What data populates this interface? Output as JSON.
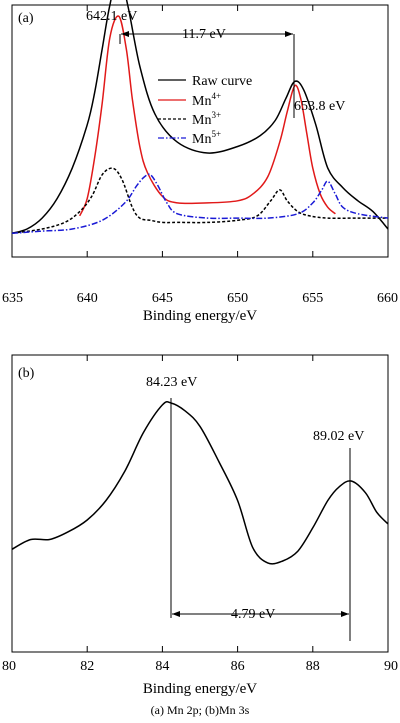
{
  "caption": "(a) Mn 2p; (b)Mn 3s",
  "chart_data": [
    {
      "panel_label": "(a)",
      "type": "line",
      "xlabel": "Binding energy/eV",
      "xlim": [
        635,
        660
      ],
      "xticks": [
        635,
        640,
        645,
        650,
        655,
        660
      ],
      "ylabel": "",
      "yticks": [],
      "legend": {
        "placement": "center-right",
        "entries": [
          {
            "label": "Raw curve",
            "style": "solid",
            "color": "#000000"
          },
          {
            "label": "Mn",
            "sup": "4+",
            "style": "solid",
            "color": "#e11919"
          },
          {
            "label": "Mn",
            "sup": "3+",
            "style": "dotted",
            "color": "#000000"
          },
          {
            "label": "Mn",
            "sup": "5+",
            "style": "dashdot",
            "color": "#1a1ad6"
          }
        ]
      },
      "series": [
        {
          "key": "raw",
          "color": "#000000",
          "dash": "",
          "x": [
            635,
            636,
            637,
            638,
            639,
            640,
            640.5,
            641,
            641.5,
            642.1,
            642.7,
            643.5,
            644.5,
            646,
            648,
            650,
            651.5,
            652.5,
            653.2,
            653.8,
            654.4,
            655.2,
            656,
            657,
            658,
            659,
            660
          ],
          "y": [
            0.1,
            0.12,
            0.17,
            0.26,
            0.4,
            0.6,
            0.75,
            0.95,
            1.15,
            1.3,
            1.15,
            0.87,
            0.65,
            0.52,
            0.47,
            0.5,
            0.55,
            0.62,
            0.72,
            0.8,
            0.76,
            0.6,
            0.4,
            0.31,
            0.25,
            0.2,
            0.12
          ]
        },
        {
          "key": "mn4",
          "color": "#e11919",
          "dash": "",
          "x": [
            639.5,
            640,
            640.5,
            641,
            641.5,
            642.1,
            642.6,
            643,
            643.5,
            644,
            645,
            646,
            648,
            650,
            651,
            652,
            652.8,
            653.3,
            653.8,
            654.2,
            654.6,
            655,
            655.5,
            656,
            656.5
          ],
          "y": [
            0.18,
            0.26,
            0.45,
            0.7,
            1.0,
            1.1,
            0.95,
            0.72,
            0.5,
            0.38,
            0.27,
            0.24,
            0.24,
            0.25,
            0.28,
            0.36,
            0.52,
            0.66,
            0.78,
            0.72,
            0.56,
            0.4,
            0.28,
            0.22,
            0.19
          ]
        },
        {
          "key": "mn3",
          "color": "#000000",
          "dash": "3,2",
          "x": [
            635,
            637,
            638.5,
            639.5,
            640.3,
            641,
            641.7,
            642.3,
            643,
            643.5,
            644.2,
            645,
            646,
            648,
            650,
            651.3,
            652.2,
            652.8,
            653.3,
            654,
            654.8,
            656,
            658,
            660
          ],
          "y": [
            0.1,
            0.12,
            0.15,
            0.2,
            0.27,
            0.37,
            0.4,
            0.35,
            0.22,
            0.17,
            0.16,
            0.15,
            0.15,
            0.15,
            0.16,
            0.18,
            0.25,
            0.3,
            0.25,
            0.2,
            0.18,
            0.17,
            0.17,
            0.17
          ]
        },
        {
          "key": "mn5",
          "color": "#1a1ad6",
          "dash": "6,2,1.5,2",
          "x": [
            635,
            637,
            639,
            641,
            642.5,
            643.3,
            643.8,
            644.2,
            644.7,
            645.3,
            646,
            648,
            650,
            652,
            654,
            655,
            655.6,
            656,
            656.5,
            657,
            658,
            660
          ],
          "y": [
            0.1,
            0.11,
            0.12,
            0.16,
            0.24,
            0.32,
            0.36,
            0.37,
            0.32,
            0.24,
            0.19,
            0.17,
            0.17,
            0.17,
            0.19,
            0.24,
            0.3,
            0.34,
            0.28,
            0.22,
            0.19,
            0.17
          ]
        }
      ],
      "annotations": [
        {
          "text": "642.1 eV",
          "x": 642.1
        },
        {
          "text": "11.7 eV",
          "x1": 642.1,
          "x2": 653.8
        },
        {
          "text": "653.8 eV",
          "x": 653.8
        }
      ]
    },
    {
      "panel_label": "(b)",
      "type": "line",
      "xlabel": "Binding energy/eV",
      "xlim": [
        80,
        90
      ],
      "xticks": [
        80,
        82,
        84,
        86,
        88,
        90
      ],
      "ylabel": "",
      "yticks": [],
      "series": [
        {
          "key": "mn3s",
          "color": "#000000",
          "dash": "",
          "x": [
            80,
            80.5,
            81,
            81.5,
            82,
            82.5,
            83,
            83.5,
            84,
            84.23,
            84.6,
            85,
            85.5,
            86,
            86.4,
            86.8,
            87.2,
            87.6,
            88,
            88.4,
            88.7,
            89.02,
            89.4,
            89.7,
            90
          ],
          "y": [
            0.25,
            0.3,
            0.3,
            0.34,
            0.4,
            0.5,
            0.65,
            0.85,
            0.99,
            1.0,
            0.96,
            0.88,
            0.7,
            0.5,
            0.26,
            0.18,
            0.19,
            0.24,
            0.36,
            0.5,
            0.57,
            0.6,
            0.54,
            0.44,
            0.38
          ]
        }
      ],
      "annotations": [
        {
          "text": "84.23 eV",
          "x": 84.23
        },
        {
          "text": "89.02 eV",
          "x": 89.02
        },
        {
          "text": "4.79 eV",
          "x1": 84.23,
          "x2": 89.02
        }
      ]
    }
  ]
}
